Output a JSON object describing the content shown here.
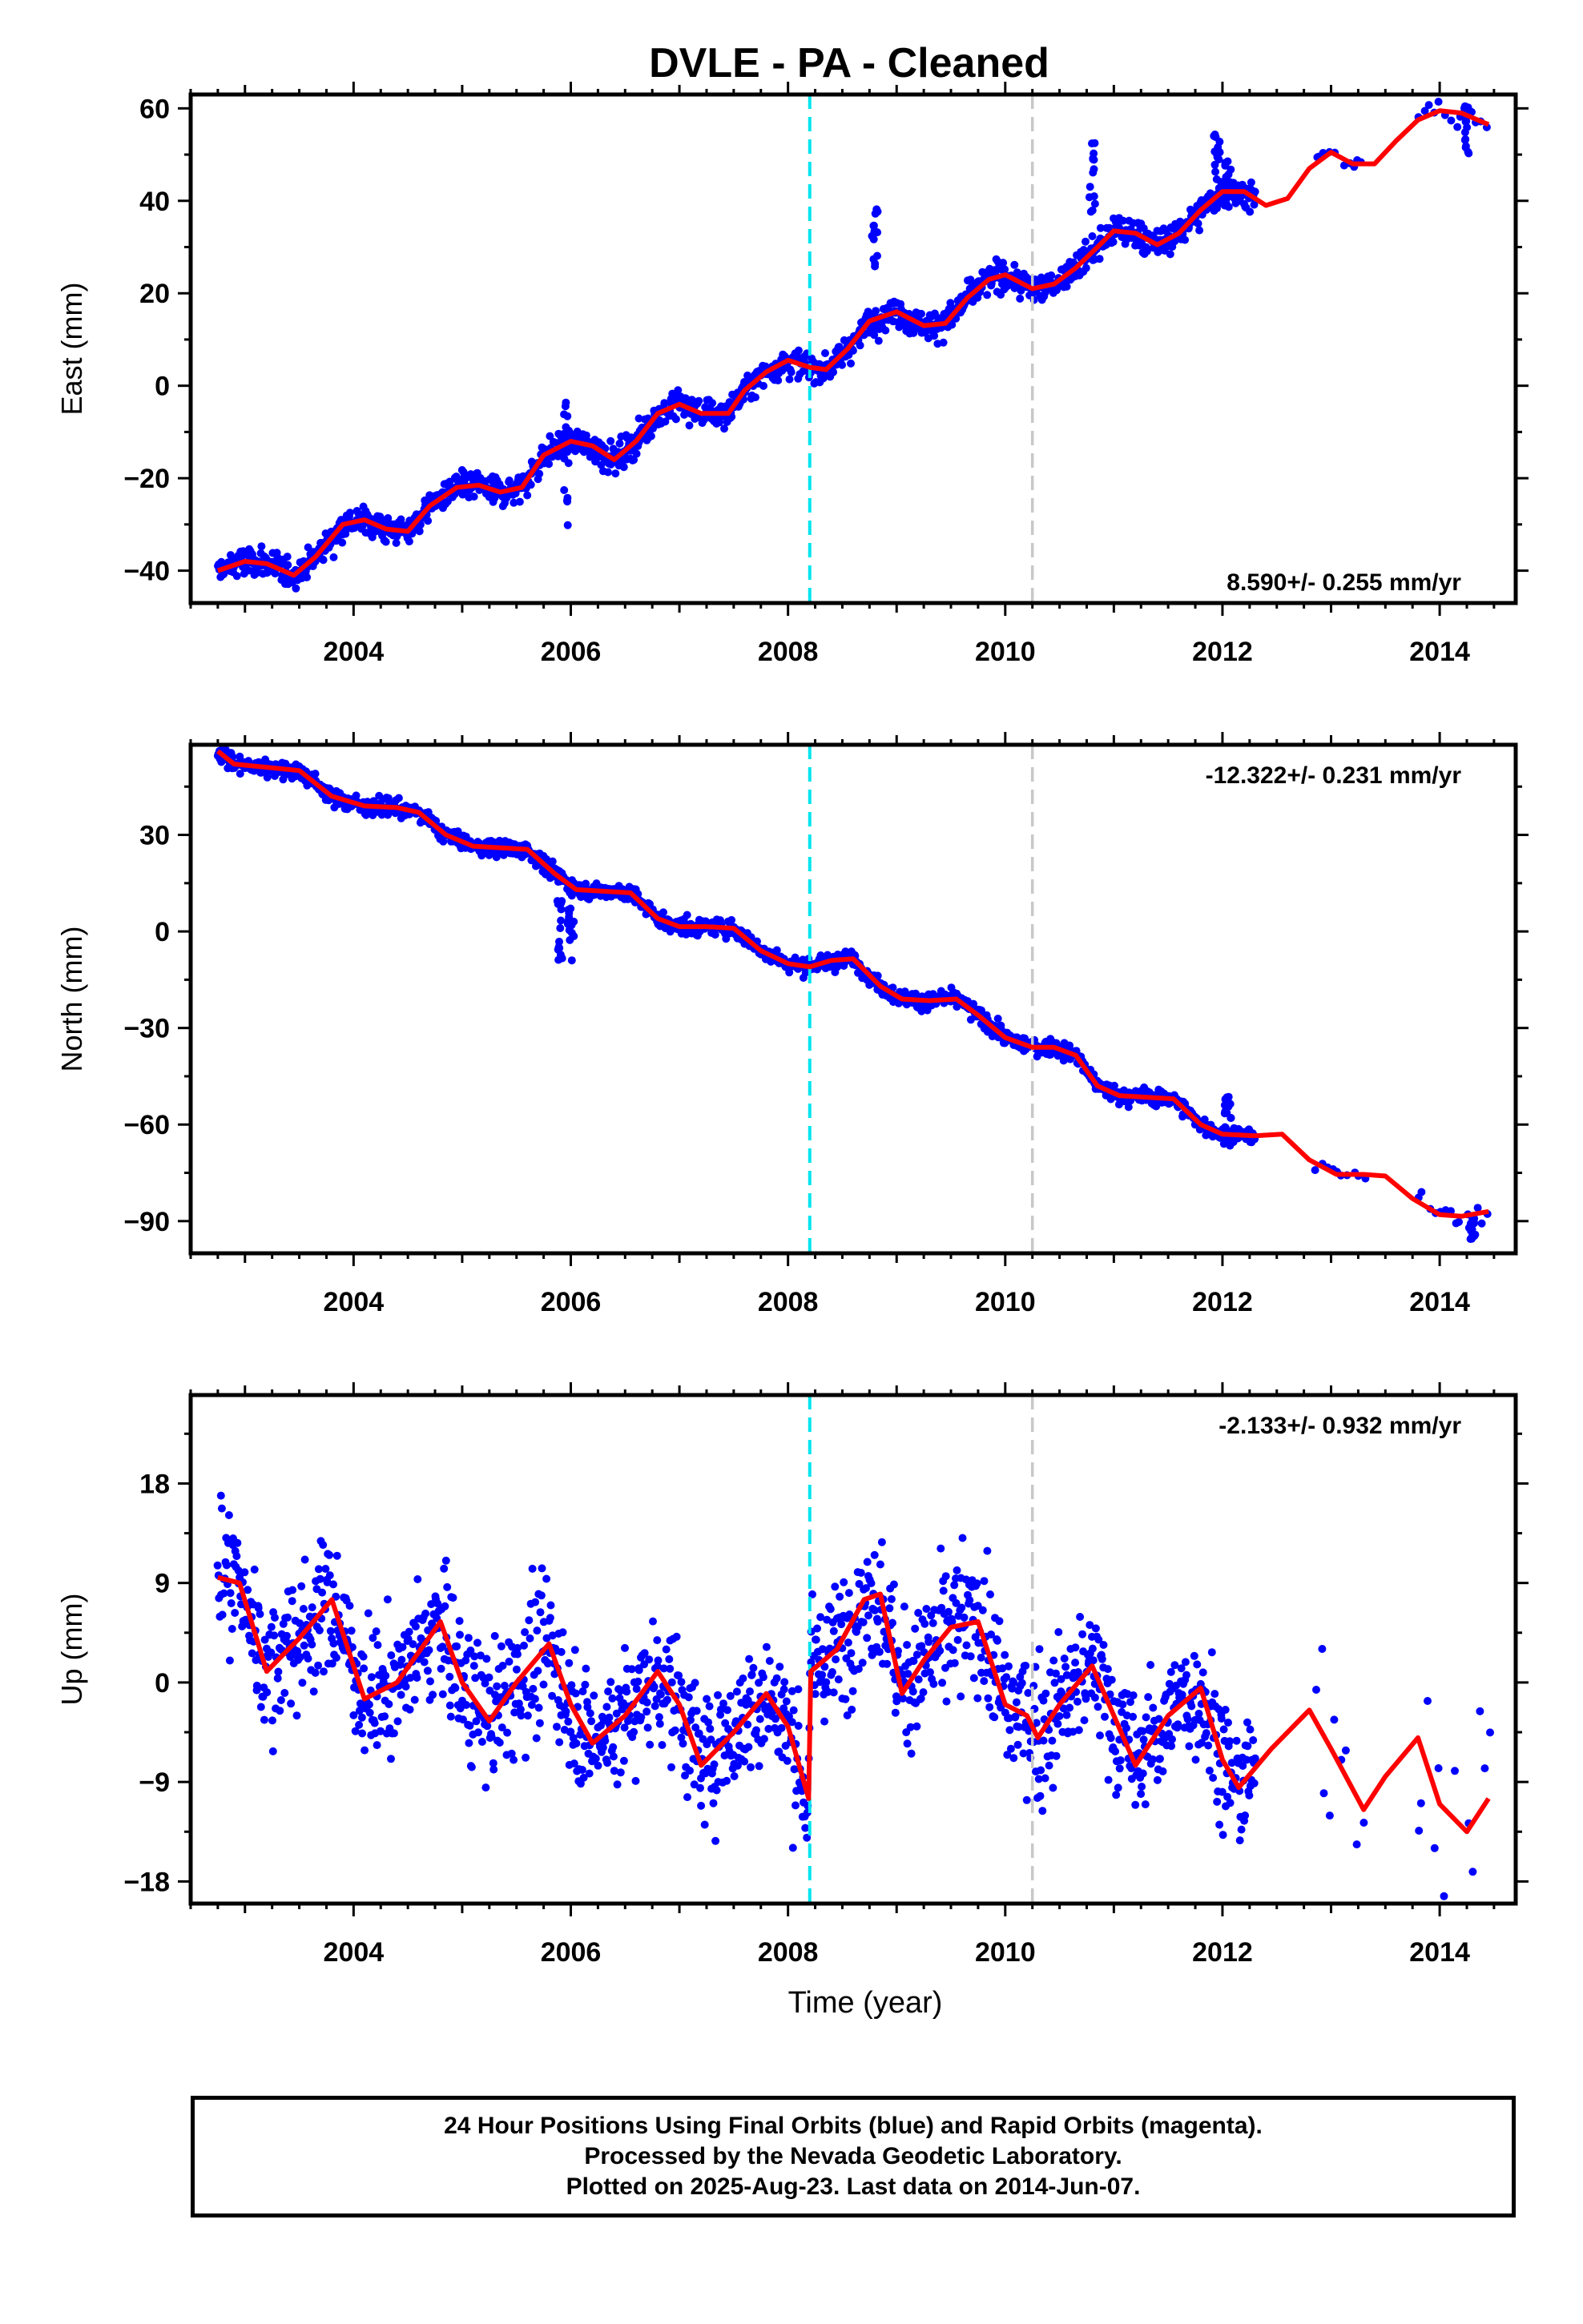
{
  "title": "DVLE  - PA - Cleaned",
  "footer": {
    "line1": "24 Hour Positions Using Final Orbits (blue) and Rapid Orbits (magenta).",
    "line2": "Processed by the Nevada Geodetic Laboratory.",
    "line3": "Plotted on 2025-Aug-23. Last data on 2014-Jun-07."
  },
  "colors": {
    "data": "#0000ff",
    "model": "#ff0000",
    "event1": "#00e5ee",
    "event2": "#c8c8c8"
  },
  "chart_data": [
    {
      "type": "scatter",
      "ylabel": "East (mm)",
      "xlabel": "",
      "rate_text": "8.590+/- 0.255 mm/yr",
      "xlim": [
        2002.5,
        2014.7
      ],
      "ylim": [
        -47,
        63
      ],
      "xticks": [
        2004,
        2006,
        2008,
        2010,
        2012,
        2014
      ],
      "yticks": [
        -40,
        -20,
        0,
        20,
        40,
        60
      ],
      "event_lines": [
        2008.2,
        2010.25
      ],
      "model": {
        "x": [
          2002.75,
          2003.0,
          2003.2,
          2003.45,
          2003.65,
          2003.9,
          2004.1,
          2004.3,
          2004.5,
          2004.7,
          2004.95,
          2005.15,
          2005.35,
          2005.55,
          2005.75,
          2006.0,
          2006.2,
          2006.4,
          2006.6,
          2006.8,
          2007.0,
          2007.2,
          2007.45,
          2007.6,
          2007.8,
          2008.0,
          2008.2,
          2008.35,
          2008.55,
          2008.75,
          2009.0,
          2009.25,
          2009.45,
          2009.65,
          2009.85,
          2010.0,
          2010.25,
          2010.45,
          2010.65,
          2010.85,
          2011.0,
          2011.2,
          2011.4,
          2011.6,
          2011.8,
          2012.0,
          2012.2,
          2012.4,
          2012.6,
          2012.8,
          2013.0,
          2013.2,
          2013.4,
          2013.6,
          2013.8,
          2014.0,
          2014.2,
          2014.45
        ],
        "y": [
          -40,
          -38,
          -38.5,
          -41,
          -37,
          -30,
          -29,
          -31,
          -31.5,
          -26,
          -22,
          -21.5,
          -23,
          -22,
          -15,
          -12,
          -13,
          -16,
          -12,
          -6,
          -4,
          -6,
          -6,
          -1,
          3,
          5.5,
          4,
          3.5,
          8,
          14,
          16,
          13,
          13.5,
          19,
          23,
          24,
          21,
          22,
          25.5,
          30,
          33.5,
          33,
          30.5,
          33,
          38,
          42,
          42,
          39,
          40.5,
          47,
          50.5,
          48,
          48,
          53,
          57.5,
          59.5,
          59,
          56.5
        ]
      },
      "spikes": [
        [
          2005.95,
          -31,
          -3
        ],
        [
          2008.8,
          24,
          40
        ],
        [
          2010.8,
          37,
          53
        ],
        [
          2011.95,
          40,
          55
        ],
        [
          2012.05,
          38,
          52
        ],
        [
          2014.25,
          50,
          61
        ]
      ],
      "segments": [
        [
          2002.75,
          2012.3,
          2.2
        ],
        [
          2012.85,
          2013.3,
          1.6
        ],
        [
          2013.8,
          2014.45,
          2.2
        ]
      ]
    },
    {
      "type": "scatter",
      "ylabel": "North (mm)",
      "xlabel": "",
      "rate_text": "-12.322+/- 0.231 mm/yr",
      "xlim": [
        2002.5,
        2014.7
      ],
      "ylim": [
        -100,
        58
      ],
      "xticks": [
        2004,
        2006,
        2008,
        2010,
        2012,
        2014
      ],
      "yticks": [
        -90,
        -60,
        -30,
        0,
        30
      ],
      "event_lines": [
        2008.2,
        2010.25
      ],
      "model": {
        "x": [
          2002.75,
          2002.9,
          2003.2,
          2003.5,
          2003.8,
          2004.1,
          2004.4,
          2004.6,
          2004.85,
          2005.1,
          2005.35,
          2005.6,
          2005.85,
          2006.05,
          2006.3,
          2006.55,
          2006.8,
          2007.0,
          2007.25,
          2007.5,
          2007.75,
          2008.0,
          2008.2,
          2008.4,
          2008.6,
          2008.85,
          2009.05,
          2009.3,
          2009.55,
          2009.75,
          2010.0,
          2010.25,
          2010.45,
          2010.65,
          2010.85,
          2011.05,
          2011.3,
          2011.55,
          2011.8,
          2012.0,
          2012.3,
          2012.55,
          2012.8,
          2013.05,
          2013.3,
          2013.5,
          2013.75,
          2014.0,
          2014.2,
          2014.45
        ],
        "y": [
          56,
          52,
          51,
          50,
          42,
          39,
          38.5,
          37,
          30,
          26.5,
          26,
          25.5,
          18,
          13,
          12.5,
          12,
          4,
          1.5,
          1.5,
          1,
          -6,
          -10,
          -11,
          -9,
          -8.5,
          -17,
          -21,
          -21.5,
          -21,
          -26,
          -33,
          -36,
          -36,
          -38.5,
          -48,
          -51,
          -51.5,
          -52,
          -60,
          -63,
          -63.5,
          -63,
          -71,
          -75.5,
          -75.5,
          -76,
          -83,
          -88,
          -88.5,
          -87
        ]
      },
      "spikes": [
        [
          2005.9,
          10,
          -13
        ],
        [
          2006.0,
          10,
          -13
        ],
        [
          2012.05,
          -58,
          -51
        ],
        [
          2014.3,
          -88,
          -96
        ]
      ],
      "segments": [
        [
          2002.75,
          2012.3,
          1.8
        ],
        [
          2012.85,
          2013.3,
          2.0
        ],
        [
          2013.8,
          2014.45,
          2.5
        ]
      ]
    },
    {
      "type": "scatter",
      "ylabel": "Up (mm)",
      "xlabel": "Time (year)",
      "rate_text": "-2.133+/- 0.932 mm/yr",
      "xlim": [
        2002.5,
        2014.7
      ],
      "ylim": [
        -20,
        26
      ],
      "xticks": [
        2004,
        2006,
        2008,
        2010,
        2012,
        2014
      ],
      "yticks": [
        -18,
        -9,
        0,
        9,
        18
      ],
      "event_lines": [
        2008.2,
        2010.25
      ],
      "model": {
        "x": [
          2002.75,
          2002.95,
          2003.2,
          2003.5,
          2003.8,
          2004.1,
          2004.4,
          2004.8,
          2005.0,
          2005.25,
          2005.5,
          2005.8,
          2006.0,
          2006.2,
          2006.5,
          2006.8,
          2007.0,
          2007.2,
          2007.5,
          2007.8,
          2008.0,
          2008.19,
          2008.21,
          2008.45,
          2008.7,
          2008.85,
          2009.05,
          2009.25,
          2009.5,
          2009.75,
          2010.0,
          2010.2,
          2010.3,
          2010.5,
          2010.8,
          2011.0,
          2011.2,
          2011.5,
          2011.8,
          2012.0,
          2012.15,
          2012.45,
          2012.8,
          2013.0,
          2013.3,
          2013.5,
          2013.8,
          2014.0,
          2014.25,
          2014.45
        ],
        "y": [
          9.5,
          9,
          1,
          4,
          7.5,
          -1.5,
          0,
          5.5,
          0,
          -3.5,
          0,
          3.5,
          -2,
          -5.5,
          -3,
          1,
          -2,
          -7.5,
          -4.5,
          -1,
          -4,
          -10.5,
          1,
          3,
          7.5,
          8,
          -1,
          2,
          5,
          5.5,
          -2,
          -3,
          -5,
          -2,
          1.5,
          -3,
          -7.5,
          -3,
          -0.5,
          -7,
          -9.5,
          -6,
          -2.5,
          -6,
          -11.5,
          -8.5,
          -5,
          -11,
          -13.5,
          -10.5
        ]
      },
      "spikes": [],
      "segments": [
        [
          2002.75,
          2012.3,
          4.2
        ],
        [
          2012.85,
          2013.3,
          8
        ],
        [
          2013.8,
          2014.45,
          9
        ]
      ]
    }
  ]
}
